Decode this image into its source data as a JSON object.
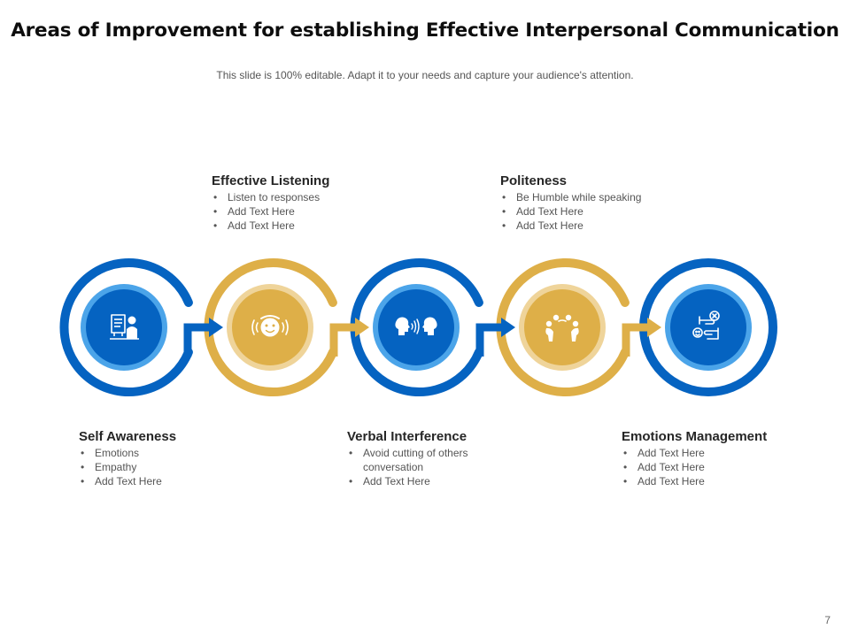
{
  "title": "Areas of Improvement for establishing Effective Interpersonal Communication",
  "subtitle": "This slide is 100% editable. Adapt it to your needs and capture your audience's attention.",
  "colors": {
    "blue": "#0563c1",
    "blue_light": "#4ba4e9",
    "gold": "#deaf48",
    "gold_light": "#efd49a"
  },
  "steps": [
    {
      "title": "Self Awareness",
      "icon": "presenter-self-icon",
      "color": "blue",
      "bullets": [
        "Emotions",
        "Empathy",
        "Add Text Here"
      ]
    },
    {
      "title": "Effective Listening",
      "icon": "listening-face-icon",
      "color": "gold",
      "bullets": [
        "Listen to responses",
        "Add Text Here",
        "Add Text Here"
      ]
    },
    {
      "title": "Verbal Interference",
      "icon": "talking-heads-icon",
      "color": "blue",
      "bullets": [
        "Avoid cutting of others conversation",
        "Add Text Here"
      ]
    },
    {
      "title": "Politeness",
      "icon": "bowing-people-icon",
      "color": "gold",
      "bullets": [
        "Be Humble while speaking",
        "Add Text Here",
        "Add Text Here"
      ]
    },
    {
      "title": "Emotions Management",
      "icon": "emotion-hands-icon",
      "color": "blue",
      "bullets": [
        "Add Text Here",
        "Add Text Here",
        "Add Text Here"
      ]
    }
  ],
  "page_number": "7"
}
